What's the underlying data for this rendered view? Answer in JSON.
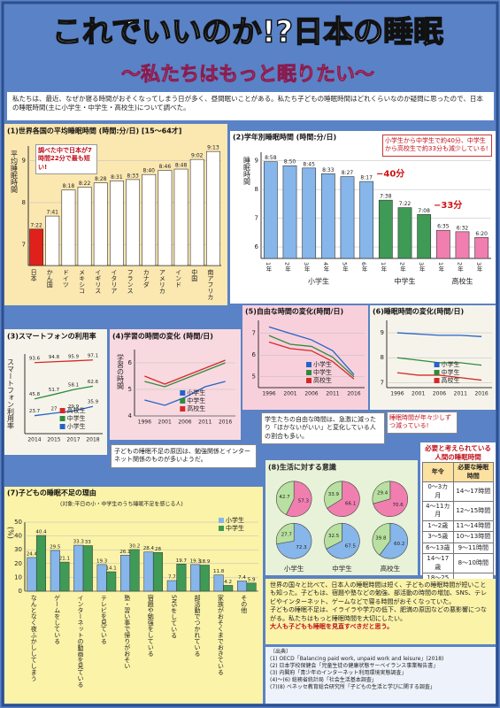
{
  "header": {
    "title": "これでいいのか!?日本の睡眠",
    "subtitle": "〜私たちはもっと眠りたい〜"
  },
  "intro": "私たちは、最近、なぜか寝る時間がおそくなってしまう日が多く、昼間眠いことがある。私たち子どもの睡眠時間はどれくらいなのか疑問に思ったので、日本の睡眠時間(主に小学生・中学生・高校生)について調べた。",
  "chart_data": [
    {
      "type": "bar",
      "title": "(1)世界各国の平均睡眠時間 (時間:分/日) [15〜64才]",
      "ylabel": "平均睡眠時間",
      "categories": [
        "日本",
        "かん国",
        "ドイツ",
        "メキシコ",
        "イギリス",
        "イタリア",
        "フランス",
        "カナダ",
        "アメリカ",
        "インド",
        "中国",
        "南アフリカ"
      ],
      "values": [
        7.37,
        7.68,
        8.3,
        8.37,
        8.47,
        8.52,
        8.55,
        8.67,
        8.77,
        8.8,
        9.03,
        9.22
      ],
      "value_labels": [
        "7:22",
        "7:41",
        "8:18",
        "8:22",
        "8:28",
        "8:31",
        "8:33",
        "8:40",
        "8:46",
        "8:48",
        "9:02",
        "9:13"
      ],
      "colors": [
        "#e0201b",
        "#ffffff",
        "#ffffff",
        "#ffffff",
        "#ffffff",
        "#ffffff",
        "#ffffff",
        "#ffffff",
        "#ffffff",
        "#ffffff",
        "#ffffff",
        "#ffffff"
      ],
      "ylim": [
        6.5,
        9.35
      ],
      "yticks": [
        7,
        8,
        9
      ],
      "annotation": "調べた中で日本が7時間22分で最も短い!"
    },
    {
      "type": "groupbar",
      "title": "(2)学年別睡眠時間 (時間:分/日)",
      "ylabel": "睡眠時間",
      "groups": [
        {
          "name": "小学生",
          "color": "#86b6ea",
          "categories": [
            "1年",
            "2年",
            "3年",
            "4年",
            "5年",
            "6年"
          ],
          "values": [
            8.97,
            8.83,
            8.75,
            8.55,
            8.45,
            8.28
          ],
          "value_labels": [
            "8:58",
            "8:50",
            "8:45",
            "8:33",
            "8:27",
            "8:17"
          ]
        },
        {
          "name": "中学生",
          "color": "#3e9a55",
          "categories": [
            "1年",
            "2年",
            "3年"
          ],
          "values": [
            7.63,
            7.37,
            7.13
          ],
          "value_labels": [
            "7:38",
            "7:22",
            "7:08"
          ]
        },
        {
          "name": "高校生",
          "color": "#f07fb0",
          "categories": [
            "1年",
            "2年",
            "3年"
          ],
          "values": [
            6.58,
            6.53,
            6.33
          ],
          "value_labels": [
            "6:35",
            "6:32",
            "6:20"
          ]
        }
      ],
      "ylim": [
        5.6,
        9.3
      ],
      "yticks": [
        6,
        7,
        8,
        9
      ],
      "annotations": [
        "−40分",
        "−33分"
      ],
      "note": "小学生から中学生で約40分、中学生から高校生で約33分も減少している!"
    },
    {
      "type": "line",
      "title": "(3)スマートフォンの利用率",
      "ylabel": "スマートフォン利用率",
      "categories": [
        "2014",
        "2015",
        "2017",
        "2018"
      ],
      "series": [
        {
          "name": "高校生",
          "color": "#d62828",
          "values": [
            93.6,
            94.8,
            95.9,
            97.1
          ]
        },
        {
          "name": "中学生",
          "color": "#2e8b3e",
          "values": [
            45.8,
            51.7,
            58.1,
            62.6
          ]
        },
        {
          "name": "小学生",
          "color": "#2563c9",
          "values": [
            23.7,
            27.0,
            29.9,
            35.9
          ]
        }
      ],
      "ylim": [
        0,
        105
      ],
      "yticks": [],
      "labels": true
    },
    {
      "type": "line",
      "title": "(4)学習の時間の変化 (時間/日)",
      "ylabel": "学習の時間",
      "categories": [
        "1996",
        "2001",
        "2006",
        "2011",
        "2016"
      ],
      "series": [
        {
          "name": "小学生",
          "color": "#2563c9",
          "values": [
            4.6,
            4.4,
            4.7,
            5.1,
            5.3
          ]
        },
        {
          "name": "中学生",
          "color": "#2e8b3e",
          "values": [
            5.3,
            5.1,
            5.4,
            5.7,
            6.0
          ]
        },
        {
          "name": "高校生",
          "color": "#d62828",
          "values": [
            5.5,
            5.2,
            5.5,
            5.8,
            6.1
          ]
        }
      ],
      "ylim": [
        4,
        6.5
      ],
      "yticks": [
        4,
        5,
        6
      ]
    },
    {
      "type": "line",
      "title": "(5)自由な時間の変化(時間/日)",
      "categories": [
        "1996",
        "2001",
        "2006",
        "2011",
        "2016"
      ],
      "series": [
        {
          "name": "小学生",
          "color": "#2563c9",
          "values": [
            7.3,
            7.0,
            6.7,
            6.2,
            5.1
          ]
        },
        {
          "name": "中学生",
          "color": "#2e8b3e",
          "values": [
            6.9,
            6.5,
            6.4,
            5.9,
            5.0
          ]
        },
        {
          "name": "高校生",
          "color": "#d62828",
          "values": [
            6.6,
            6.3,
            6.2,
            5.7,
            4.9
          ]
        }
      ],
      "ylim": [
        4.5,
        7.6
      ],
      "yticks": [
        5,
        6,
        7
      ]
    },
    {
      "type": "line",
      "title": "(6)睡眠時間の変化(時間/日)",
      "categories": [
        "1996",
        "2001",
        "2006",
        "2011",
        "2016"
      ],
      "series": [
        {
          "name": "小学生",
          "color": "#2563c9",
          "values": [
            9.0,
            8.95,
            8.9,
            8.9,
            8.85
          ]
        },
        {
          "name": "中学生",
          "color": "#2e8b3e",
          "values": [
            8.0,
            7.9,
            7.8,
            7.8,
            7.7
          ]
        },
        {
          "name": "高校生",
          "color": "#d62828",
          "values": [
            7.4,
            7.3,
            7.3,
            7.2,
            7.1
          ]
        }
      ],
      "ylim": [
        6.8,
        9.5
      ],
      "yticks": [
        7,
        8,
        9
      ],
      "annotation": "睡眠時間が年々少しずつ減っている!"
    },
    {
      "type": "grouped",
      "title": "(7)子どもの睡眠不足の理由",
      "subtitle": "(対象:平日の小・中学生のうち睡眠不足を感じる人)",
      "ylabel": "(%)",
      "categories": [
        "なんとなく夜ふかししてしまう",
        "ゲームをしている",
        "インターネットの動画を見ている",
        "テレビを見ている",
        "塾・習い事で帰りがおそい",
        "宿題や勉強をしている",
        "SNSをしている",
        "部活動でつかれている",
        "家族がおそくまでおきている",
        "その他"
      ],
      "series": [
        {
          "name": "小学生",
          "color": "#86b6ea",
          "values": [
            24.4,
            29.5,
            33.3,
            19.3,
            26.1,
            28.4,
            7.7,
            19.3,
            11.8,
            7.4
          ]
        },
        {
          "name": "中学生",
          "color": "#3e9a55",
          "values": [
            40.4,
            21.1,
            33.0,
            14.1,
            30.2,
            28.0,
            19.7,
            18.9,
            4.2,
            5.9
          ]
        }
      ],
      "ylim": [
        0,
        50
      ],
      "yticks": [
        0,
        10,
        20,
        30,
        40,
        50
      ]
    },
    {
      "type": "pie",
      "title": "(8)生活に対する意識",
      "columns": [
        "小学生",
        "中学生",
        "高校生"
      ],
      "pies": [
        {
          "values": [
            57.3,
            42.7
          ],
          "colors": [
            "#f07fb0",
            "#b8e0a0"
          ]
        },
        {
          "values": [
            66.1,
            33.9
          ],
          "colors": [
            "#f07fb0",
            "#b8e0a0"
          ]
        },
        {
          "values": [
            70.6,
            29.4
          ],
          "colors": [
            "#f07fb0",
            "#b8e0a0"
          ]
        },
        {
          "values": [
            72.3,
            27.7
          ],
          "colors": [
            "#86b6ea",
            "#b8e0a0"
          ]
        },
        {
          "values": [
            67.5,
            32.5
          ],
          "colors": [
            "#86b6ea",
            "#b8e0a0"
          ]
        },
        {
          "values": [
            60.2,
            39.8
          ],
          "colors": [
            "#86b6ea",
            "#b8e0a0"
          ]
        }
      ]
    }
  ],
  "notes": {
    "reason": "子どもの睡眠不足の原因は、勉強関係とインターネット関係のものが多いようだ。",
    "free": "学生たちの自由な時間は、急激に減ったり「ほかないがいい」と変化している人の割合も多い。"
  },
  "table": {
    "title": "必要と考えられている人間の睡眠時間",
    "header": [
      "年令",
      "必要な睡眠時間"
    ],
    "rows": [
      [
        "0〜3カ月",
        "14〜17時間"
      ],
      [
        "4〜11カ月",
        "12〜15時間"
      ],
      [
        "1〜2歳",
        "11〜14時間"
      ],
      [
        "3〜5歳",
        "10〜13時間"
      ],
      [
        "6〜13歳",
        "9〜11時間"
      ],
      [
        "14〜17歳",
        "8〜10時間"
      ],
      [
        "18〜25歳",
        "7〜9時間"
      ],
      [
        "26〜64歳",
        "7〜9時間"
      ],
      [
        "65歳〜",
        "7〜8時間"
      ]
    ]
  },
  "conclusion": [
    "世界の国々と比べて、日本人の睡眠時間は短く、子どもの睡眠時間が短いことも知った。子どもは、宿題や塾などの勉強、部活動の時間の増加、SNS、テレビやインターネット、ゲームなどで寝る時間がおそくなっていた。",
    "子どもの睡眠不足は、イライラや学力の低下、肥満の原因などの悪影響につながる。私たちはもっと睡眠時間を大切にしたい。",
    "大人も子どもも睡眠を見直すべきだと思う。"
  ],
  "sources": {
    "title": "〔出典〕",
    "items": [
      "(1) OECD「Balancing paid work, unpaid work and leisure」(2018)",
      "(2) 日本学校保健会「児童生徒の健康状態サーベイランス事業報告書」",
      "(3) 内閣府「青少年のインターネット利用環境実態調査」",
      "(4)〜(6) 総務省統計局「社会生活基本調査」",
      "(7)(8) ベネッセ教育総合研究所「子どもの生活と学びに関する調査」"
    ]
  }
}
